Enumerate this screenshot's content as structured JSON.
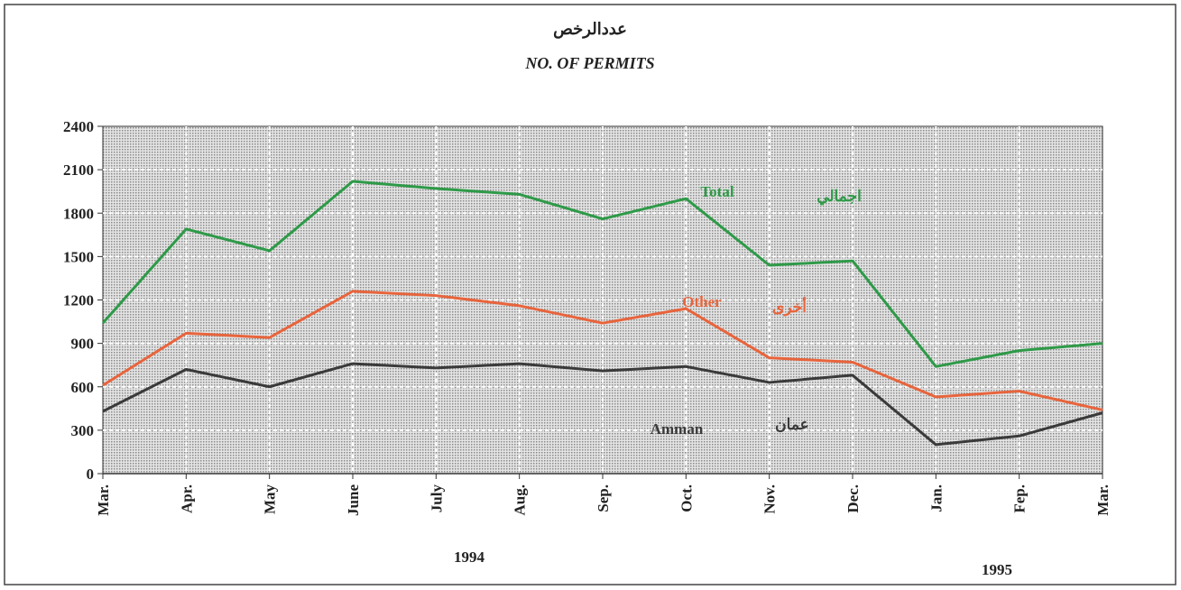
{
  "chart_data": {
    "type": "line",
    "title": "عددالرخص",
    "subtitle": "NO. OF PERMITS",
    "categories": [
      "Mar.",
      "Apr.",
      "May",
      "June",
      "July",
      "Aug.",
      "Sep.",
      "Oct.",
      "Nov.",
      "Dec.",
      "Jan.",
      "Fep.",
      "Mar."
    ],
    "series": [
      {
        "name": "Total",
        "name_ar": "اجمالي",
        "color": "#2e9a48",
        "values": [
          1040,
          1690,
          1540,
          2020,
          1970,
          1930,
          1760,
          1900,
          1440,
          1470,
          740,
          850,
          900
        ]
      },
      {
        "name": "Other",
        "name_ar": "أخرى",
        "color": "#e8643c",
        "values": [
          610,
          970,
          940,
          1260,
          1230,
          1160,
          1040,
          1140,
          800,
          770,
          530,
          570,
          440
        ]
      },
      {
        "name": "Amman",
        "name_ar": "عمان",
        "color": "#3a3a3a",
        "values": [
          430,
          720,
          600,
          760,
          730,
          760,
          710,
          740,
          630,
          680,
          200,
          260,
          420
        ]
      }
    ],
    "annotations": [
      "1994",
      "1995"
    ],
    "ylim": [
      0,
      2400
    ],
    "yticks": [
      0,
      300,
      600,
      900,
      1200,
      1500,
      1800,
      2100,
      2400
    ],
    "grid": true
  }
}
